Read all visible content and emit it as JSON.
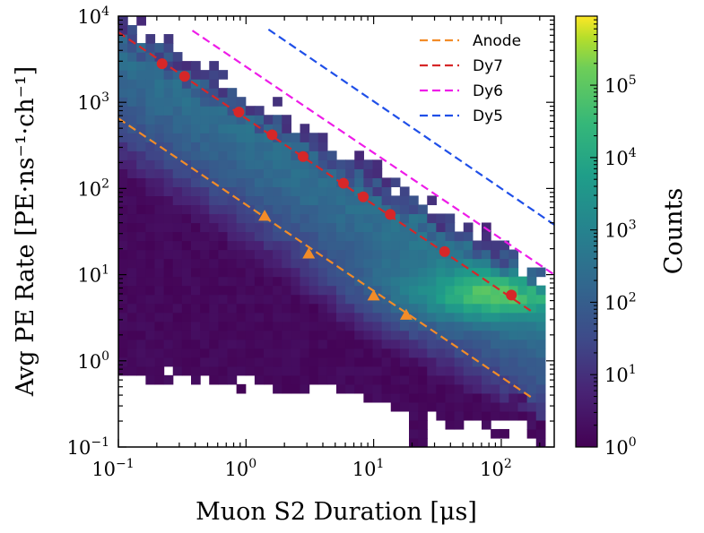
{
  "chart_data": {
    "type": "heatmap",
    "xlabel": "Muon S2 Duration [μs]",
    "ylabel": "Avg PE Rate [PE·ns⁻¹·ch⁻¹]",
    "xscale": "log",
    "yscale": "log",
    "xlim": [
      0.1,
      260
    ],
    "ylim": [
      0.1,
      10000
    ],
    "x_ticks": [
      {
        "value": 0.1,
        "base": "10",
        "exp": "−1"
      },
      {
        "value": 1,
        "base": "10",
        "exp": "0"
      },
      {
        "value": 10,
        "base": "10",
        "exp": "1"
      },
      {
        "value": 100,
        "base": "10",
        "exp": "2"
      }
    ],
    "y_ticks": [
      {
        "value": 0.1,
        "base": "10",
        "exp": "−1"
      },
      {
        "value": 1,
        "base": "10",
        "exp": "0"
      },
      {
        "value": 10,
        "base": "10",
        "exp": "1"
      },
      {
        "value": 100,
        "base": "10",
        "exp": "2"
      },
      {
        "value": 1000,
        "base": "10",
        "exp": "3"
      },
      {
        "value": 10000,
        "base": "10",
        "exp": "4"
      }
    ],
    "colorbar": {
      "label": "Counts",
      "scale": "log",
      "range": [
        1,
        900000
      ],
      "ticks": [
        {
          "value": 1,
          "base": "10",
          "exp": "0"
        },
        {
          "value": 10,
          "base": "10",
          "exp": "1"
        },
        {
          "value": 100,
          "base": "10",
          "exp": "2"
        },
        {
          "value": 1000,
          "base": "10",
          "exp": "3"
        },
        {
          "value": 10000,
          "base": "10",
          "exp": "4"
        },
        {
          "value": 100000,
          "base": "10",
          "exp": "5"
        }
      ],
      "colormap": "viridis"
    },
    "heatmap": {
      "description_note": "2D histogram of counts; peak density near x≈100 μs, y≈6 PE·ns⁻¹·ch⁻¹",
      "peak": {
        "x": 100,
        "y": 6,
        "counts": 900000
      }
    },
    "series": [
      {
        "name": "Anode",
        "color": "#f28c28",
        "linestyle": "dashed",
        "marker": "triangle",
        "line": [
          {
            "x": 0.1,
            "y": 650
          },
          {
            "x": 180,
            "y": 0.36
          }
        ],
        "points": [
          {
            "x": 1.4,
            "y": 48
          },
          {
            "x": 3.1,
            "y": 17.5
          },
          {
            "x": 10,
            "y": 5.7
          },
          {
            "x": 18,
            "y": 3.4
          }
        ]
      },
      {
        "name": "Dy7",
        "color": "#d62728",
        "linestyle": "dashed",
        "marker": "circle",
        "line": [
          {
            "x": 0.1,
            "y": 6500
          },
          {
            "x": 180,
            "y": 3.6
          }
        ],
        "points": [
          {
            "x": 0.22,
            "y": 2800
          },
          {
            "x": 0.33,
            "y": 2000
          },
          {
            "x": 0.88,
            "y": 770
          },
          {
            "x": 1.6,
            "y": 420
          },
          {
            "x": 2.8,
            "y": 235
          },
          {
            "x": 5.8,
            "y": 115
          },
          {
            "x": 8.3,
            "y": 80
          },
          {
            "x": 13.5,
            "y": 50
          },
          {
            "x": 36,
            "y": 18.5
          },
          {
            "x": 120,
            "y": 5.8
          }
        ]
      },
      {
        "name": "Dy6",
        "color": "#ee1ce8",
        "linestyle": "dashed",
        "marker": "none",
        "line": [
          {
            "x": 0.38,
            "y": 6800
          },
          {
            "x": 260,
            "y": 10
          }
        ]
      },
      {
        "name": "Dy5",
        "color": "#1f4fe8",
        "linestyle": "dashed",
        "marker": "none",
        "line": [
          {
            "x": 1.5,
            "y": 7000
          },
          {
            "x": 260,
            "y": 38
          }
        ]
      }
    ],
    "legend": {
      "position": "top-right",
      "entries": [
        "Anode",
        "Dy7",
        "Dy6",
        "Dy5"
      ]
    }
  }
}
